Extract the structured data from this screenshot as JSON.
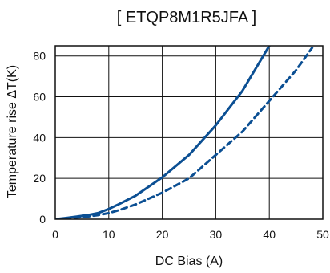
{
  "chart_data": {
    "type": "line",
    "title": "[ ETQP8M1R5JFA ]",
    "xlabel": "DC Bias (A)",
    "ylabel": "Temperature rise ΔT(K)",
    "xlim": [
      0,
      50
    ],
    "ylim": [
      0,
      85
    ],
    "xticks": [
      "0",
      "10",
      "20",
      "30",
      "40",
      "50"
    ],
    "yticks": [
      "0",
      "20",
      "40",
      "60",
      "80"
    ],
    "grid": true,
    "legend": "none",
    "colors": {
      "series": "#0b4f93",
      "grid": "#111111",
      "axis": "#111111"
    },
    "series": [
      {
        "style": "solid",
        "points": [
          [
            0,
            0
          ],
          [
            2,
            0.6
          ],
          [
            4,
            1.3
          ],
          [
            6,
            2
          ],
          [
            8,
            3
          ],
          [
            10,
            5
          ],
          [
            12,
            7.5
          ],
          [
            15,
            11.5
          ],
          [
            20,
            20.5
          ],
          [
            25,
            31.5
          ],
          [
            30,
            46
          ],
          [
            35,
            63
          ],
          [
            40,
            85
          ]
        ]
      },
      {
        "style": "dashed",
        "points": [
          [
            0,
            0
          ],
          [
            2,
            0.4
          ],
          [
            4,
            0.8
          ],
          [
            6,
            1.3
          ],
          [
            8,
            2
          ],
          [
            10,
            3
          ],
          [
            12,
            4.5
          ],
          [
            15,
            7.2
          ],
          [
            20,
            13
          ],
          [
            25,
            20
          ],
          [
            30,
            31.5
          ],
          [
            35,
            43
          ],
          [
            40,
            58
          ],
          [
            45,
            73
          ],
          [
            48,
            84
          ]
        ]
      }
    ]
  }
}
